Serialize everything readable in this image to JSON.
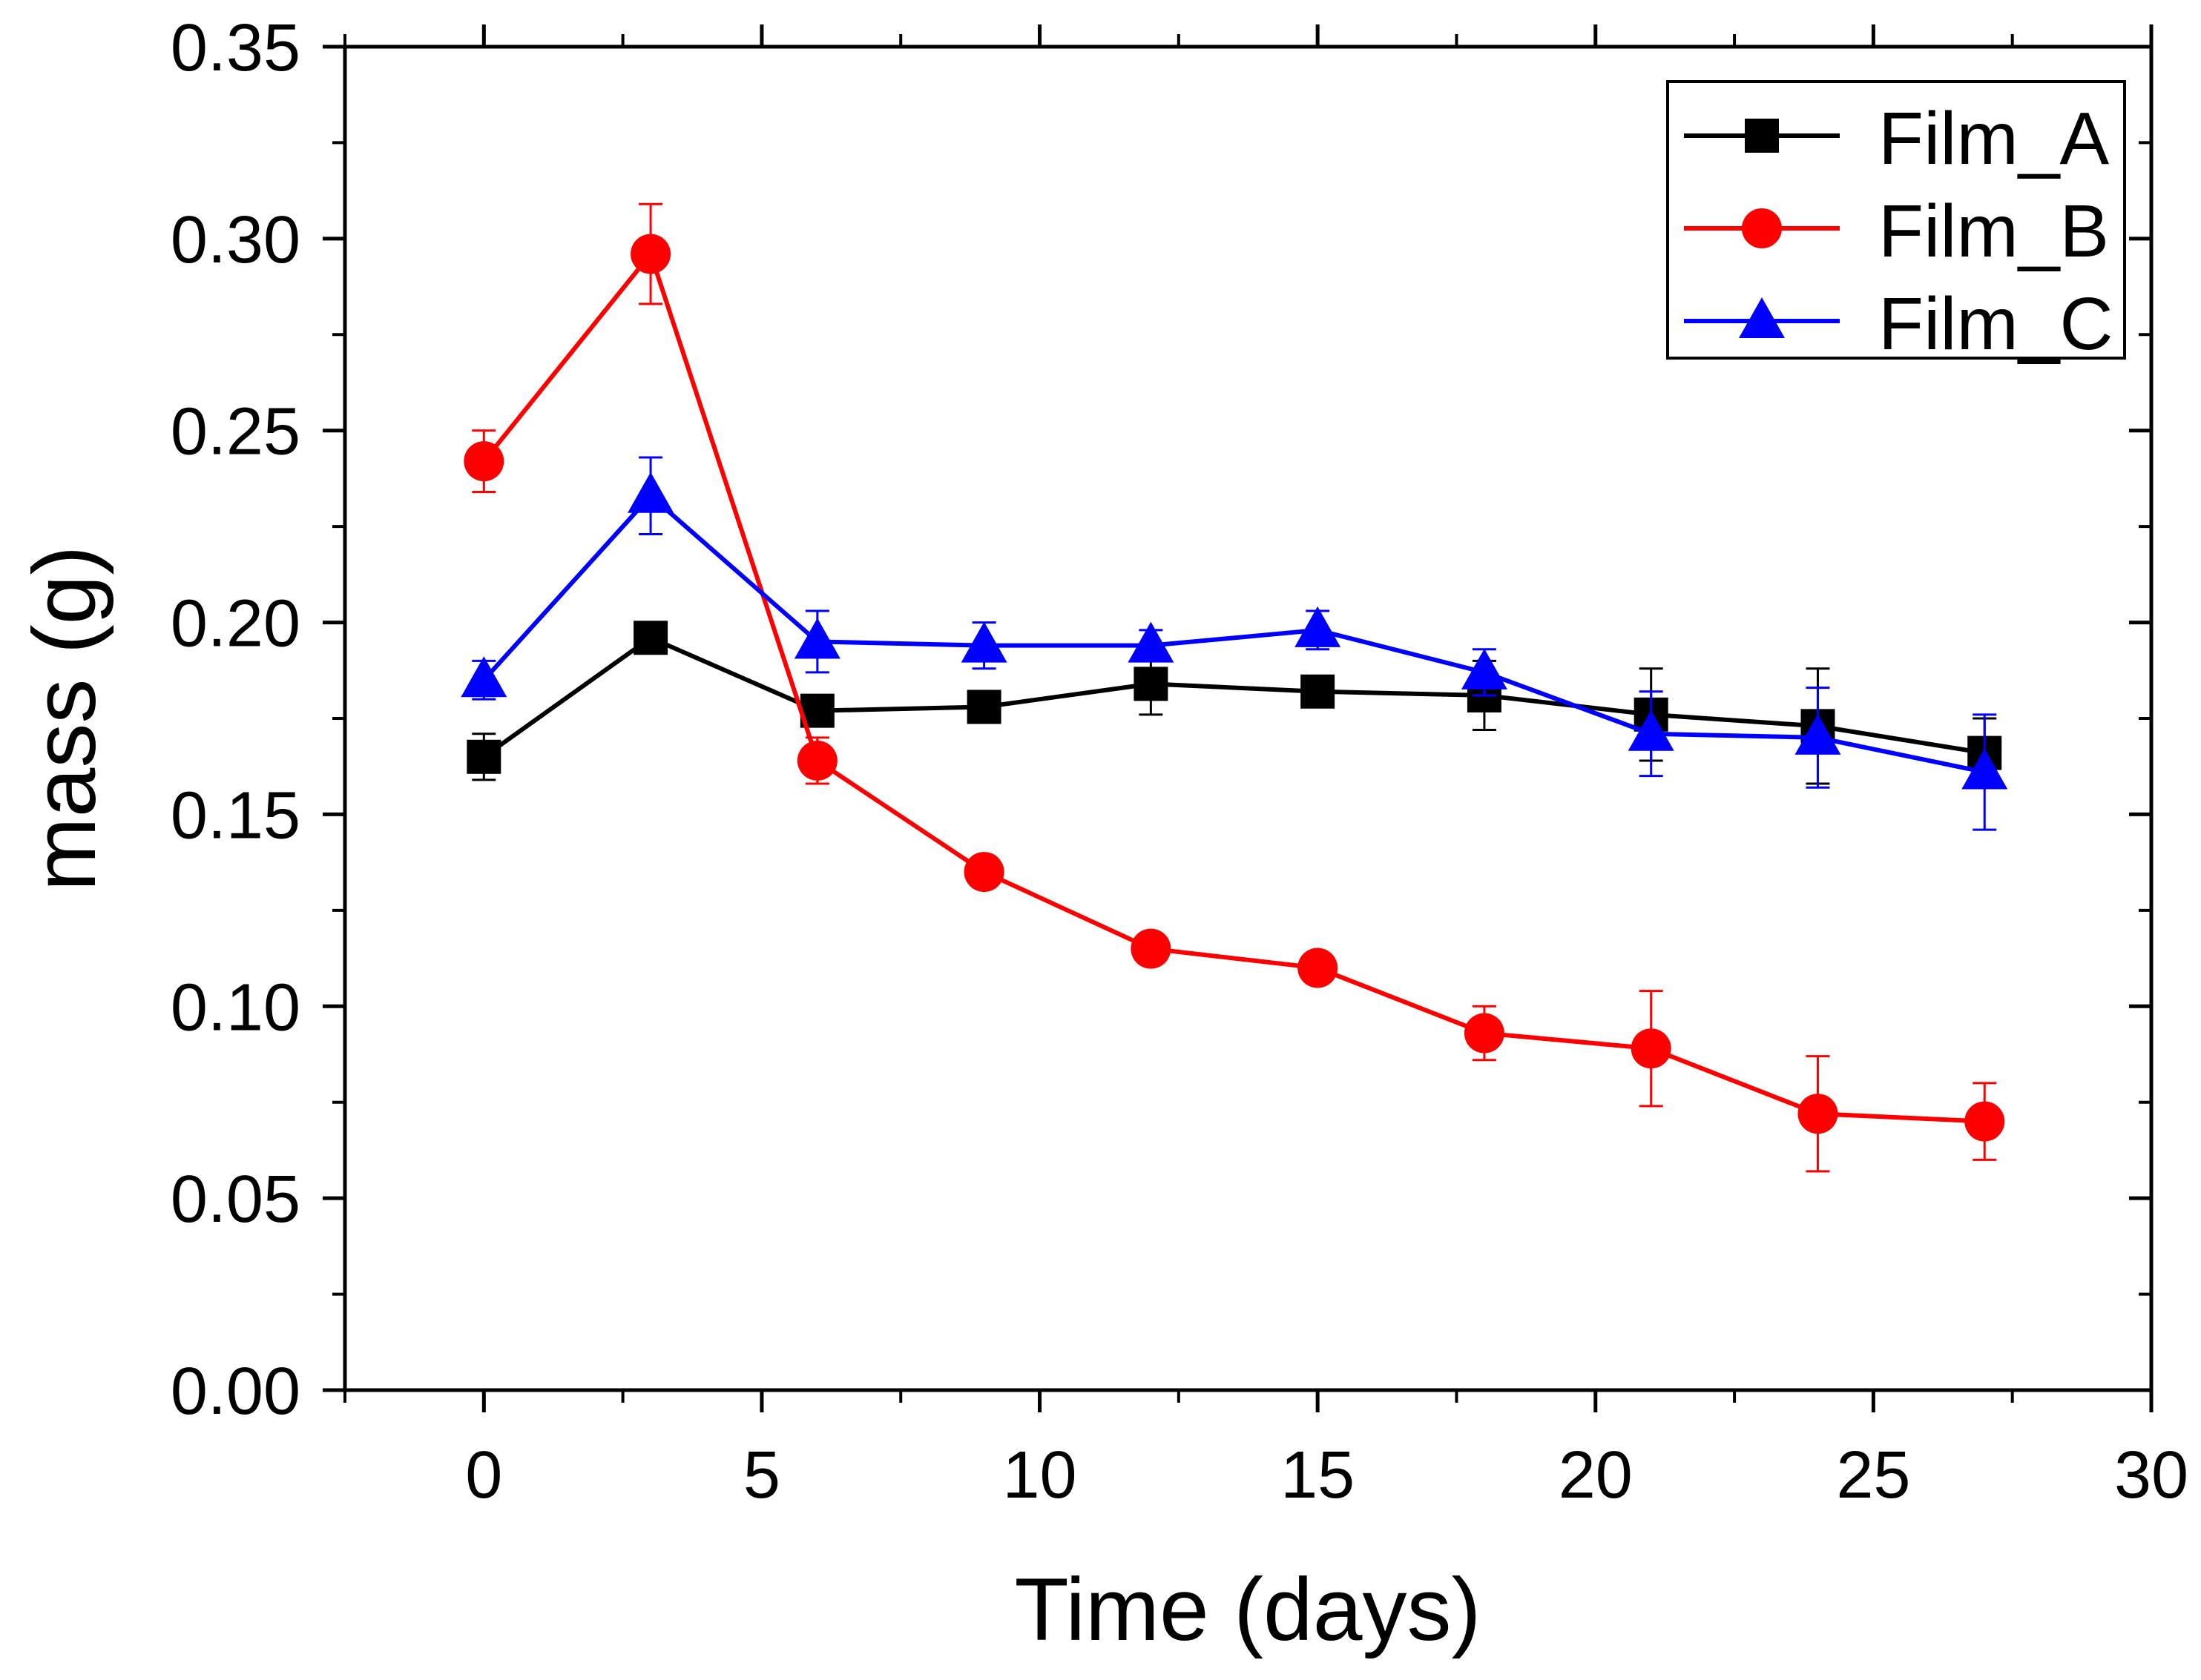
{
  "chart_data": {
    "type": "line",
    "title": "",
    "xlabel": "Time (days)",
    "ylabel": "mass (g)",
    "xlim": [
      -2.5,
      30
    ],
    "ylim": [
      0,
      0.35
    ],
    "xticks": [
      0,
      5,
      10,
      15,
      20,
      25,
      30
    ],
    "yticks": [
      0.0,
      0.05,
      0.1,
      0.15,
      0.2,
      0.25,
      0.3,
      0.35
    ],
    "xtick_labels": [
      "0",
      "5",
      "10",
      "15",
      "20",
      "25",
      "30"
    ],
    "ytick_labels": [
      "0.00",
      "0.05",
      "0.10",
      "0.15",
      "0.20",
      "0.25",
      "0.30",
      "0.35"
    ],
    "legend_position": "top-right",
    "x": [
      0,
      3,
      6,
      9,
      12,
      15,
      18,
      21,
      24,
      27
    ],
    "series": [
      {
        "name": "Film_A",
        "color": "#000000",
        "marker": "square",
        "values": [
          0.165,
          0.196,
          0.177,
          0.178,
          0.184,
          0.182,
          0.181,
          0.176,
          0.173,
          0.166
        ],
        "errors": [
          0.006,
          0.003,
          0.004,
          0.003,
          0.008,
          0.003,
          0.009,
          0.012,
          0.015,
          0.009
        ]
      },
      {
        "name": "Film_B",
        "color": "#ff0000",
        "marker": "circle",
        "values": [
          0.242,
          0.296,
          0.164,
          0.135,
          0.115,
          0.11,
          0.093,
          0.089,
          0.072,
          0.07
        ],
        "errors": [
          0.008,
          0.013,
          0.006,
          0.004,
          0.003,
          0.003,
          0.007,
          0.015,
          0.015,
          0.01
        ]
      },
      {
        "name": "Film_C",
        "color": "#0000ff",
        "marker": "triangle",
        "values": [
          0.185,
          0.233,
          0.195,
          0.194,
          0.194,
          0.198,
          0.187,
          0.171,
          0.17,
          0.161
        ],
        "errors": [
          0.005,
          0.01,
          0.008,
          0.006,
          0.004,
          0.005,
          0.006,
          0.011,
          0.013,
          0.015
        ]
      }
    ]
  }
}
